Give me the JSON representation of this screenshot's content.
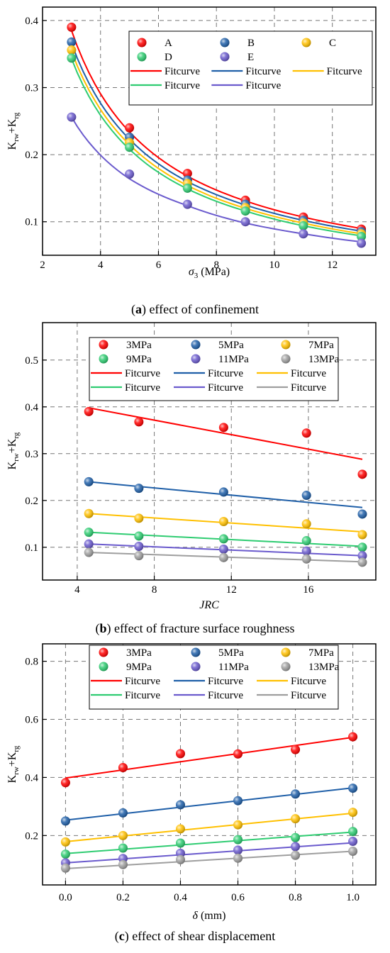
{
  "chart_data": [
    {
      "type": "scatter",
      "panel": "a",
      "caption_bold": "a",
      "caption_rest": " effect of confinement",
      "xlabel": "σ3 (MPa)",
      "ylabel": "Krw+Krg",
      "xlim": [
        2,
        13.5
      ],
      "ylim": [
        0.05,
        0.42
      ],
      "xticks": [
        2,
        4,
        6,
        8,
        10,
        12
      ],
      "yticks": [
        0.1,
        0.2,
        0.3,
        0.4
      ],
      "grid": true,
      "legend_position": "top-right",
      "x": [
        3,
        5,
        7,
        9,
        11,
        13
      ],
      "series": [
        {
          "name": "A",
          "color": "#ff0000",
          "values": [
            0.39,
            0.24,
            0.172,
            0.132,
            0.107,
            0.089
          ],
          "fit": [
            0.385,
            0.234,
            0.168,
            0.131,
            0.107,
            0.09
          ]
        },
        {
          "name": "B",
          "color": "#1f5fa8",
          "values": [
            0.368,
            0.226,
            0.162,
            0.126,
            0.102,
            0.085
          ],
          "fit": [
            0.366,
            0.223,
            0.16,
            0.125,
            0.102,
            0.086
          ]
        },
        {
          "name": "C",
          "color": "#ffc000",
          "values": [
            0.356,
            0.218,
            0.157,
            0.121,
            0.098,
            0.082
          ],
          "fit": [
            0.354,
            0.215,
            0.154,
            0.12,
            0.098,
            0.082
          ]
        },
        {
          "name": "D",
          "color": "#2ecc71",
          "values": [
            0.344,
            0.211,
            0.15,
            0.116,
            0.094,
            0.078
          ],
          "fit": [
            0.343,
            0.208,
            0.149,
            0.116,
            0.094,
            0.079
          ]
        },
        {
          "name": "E",
          "color": "#6a5acd",
          "values": [
            0.256,
            0.171,
            0.126,
            0.1,
            0.082,
            0.068
          ],
          "fit": [
            0.256,
            0.164,
            0.124,
            0.098,
            0.082,
            0.07
          ]
        }
      ],
      "fit_label": "Fitcurve"
    },
    {
      "type": "scatter",
      "panel": "b",
      "caption_bold": "b",
      "caption_rest": " effect of fracture surface roughness",
      "xlabel": "JRC",
      "ylabel": "Krw+Krg",
      "xlim": [
        2.2,
        19.5
      ],
      "ylim": [
        0.03,
        0.58
      ],
      "xticks": [
        4,
        8,
        12,
        16
      ],
      "yticks": [
        0.1,
        0.2,
        0.3,
        0.4,
        0.5
      ],
      "grid": true,
      "legend_position": "top",
      "x": [
        4.6,
        7.2,
        11.6,
        15.9,
        18.8
      ],
      "series": [
        {
          "name": "3MPa",
          "color": "#ff0000",
          "values": [
            0.39,
            0.368,
            0.356,
            0.344,
            0.256
          ],
          "fit": [
            0.398,
            0.288
          ]
        },
        {
          "name": "5MPa",
          "color": "#1f5fa8",
          "values": [
            0.24,
            0.226,
            0.218,
            0.211,
            0.171
          ],
          "fit": [
            0.24,
            0.185
          ]
        },
        {
          "name": "7MPa",
          "color": "#ffc000",
          "values": [
            0.172,
            0.162,
            0.155,
            0.15,
            0.127
          ],
          "fit": [
            0.172,
            0.133
          ]
        },
        {
          "name": "9MPa",
          "color": "#2ecc71",
          "values": [
            0.132,
            0.124,
            0.118,
            0.114,
            0.1
          ],
          "fit": [
            0.132,
            0.102
          ]
        },
        {
          "name": "11MPa",
          "color": "#6a5acd",
          "values": [
            0.107,
            0.102,
            0.096,
            0.092,
            0.082
          ],
          "fit": [
            0.107,
            0.082
          ]
        },
        {
          "name": "13MPa",
          "color": "#9e9e9e",
          "values": [
            0.089,
            0.082,
            0.078,
            0.075,
            0.068
          ],
          "fit": [
            0.089,
            0.069
          ]
        }
      ],
      "fit_label": "Fitcurve"
    },
    {
      "type": "scatter",
      "panel": "c",
      "caption_bold": "c",
      "caption_rest": " effect of shear displacement",
      "xlabel": "δ (mm)",
      "ylabel": "Krw+Krg",
      "xlim": [
        -0.08,
        1.08
      ],
      "ylim": [
        0.03,
        0.86
      ],
      "xticks": [
        0.0,
        0.2,
        0.4,
        0.6,
        0.8,
        1.0
      ],
      "yticks": [
        0.2,
        0.4,
        0.6,
        0.8
      ],
      "grid": true,
      "legend_position": "top",
      "x": [
        0.0,
        0.2,
        0.4,
        0.6,
        0.8,
        1.0
      ],
      "series": [
        {
          "name": "3MPa",
          "color": "#ff0000",
          "values": [
            0.382,
            0.434,
            0.482,
            0.481,
            0.496,
            0.54
          ],
          "fit": [
            0.398,
            0.538
          ]
        },
        {
          "name": "5MPa",
          "color": "#1f5fa8",
          "values": [
            0.25,
            0.278,
            0.306,
            0.32,
            0.343,
            0.363
          ],
          "fit": [
            0.253,
            0.364
          ]
        },
        {
          "name": "7MPa",
          "color": "#ffc000",
          "values": [
            0.178,
            0.2,
            0.223,
            0.237,
            0.258,
            0.28
          ],
          "fit": [
            0.179,
            0.277
          ]
        },
        {
          "name": "9MPa",
          "color": "#2ecc71",
          "values": [
            0.136,
            0.157,
            0.174,
            0.186,
            0.193,
            0.214
          ],
          "fit": [
            0.138,
            0.212
          ]
        },
        {
          "name": "11MPa",
          "color": "#6a5acd",
          "values": [
            0.106,
            0.121,
            0.139,
            0.15,
            0.162,
            0.18
          ],
          "fit": [
            0.106,
            0.175
          ]
        },
        {
          "name": "13MPa",
          "color": "#9e9e9e",
          "values": [
            0.088,
            0.1,
            0.117,
            0.122,
            0.132,
            0.146
          ],
          "fit": [
            0.086,
            0.146
          ]
        }
      ],
      "fit_label": "Fitcurve"
    }
  ]
}
